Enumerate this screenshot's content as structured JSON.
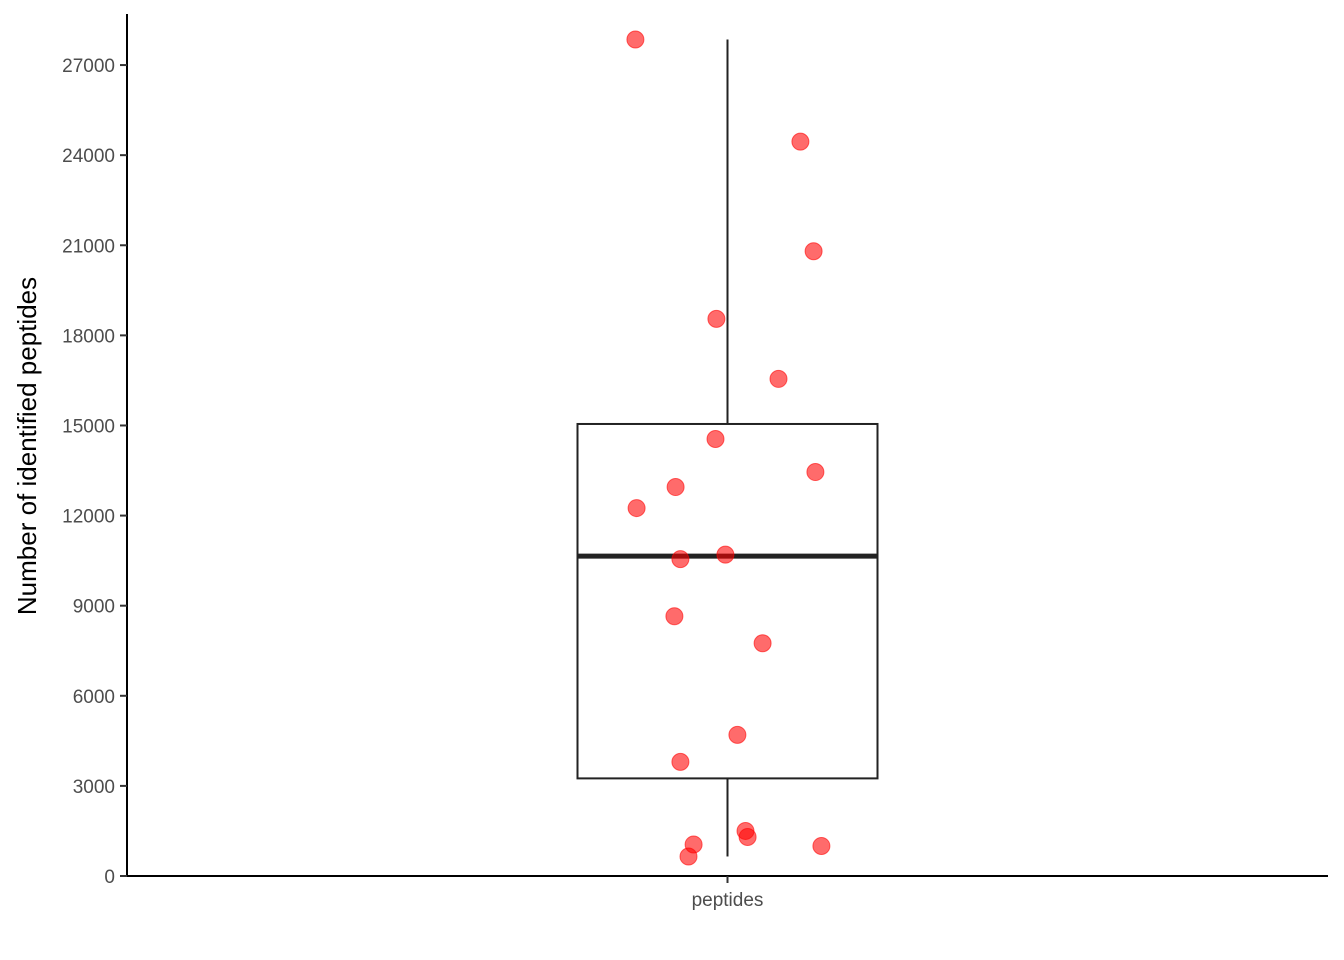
{
  "chart_data": {
    "type": "box",
    "categories": [
      "peptides"
    ],
    "title": "",
    "xlabel": "",
    "ylabel": "Number of identified peptides",
    "ylim": [
      0,
      28700
    ],
    "yticks": [
      0,
      3000,
      6000,
      9000,
      12000,
      15000,
      18000,
      21000,
      24000,
      27000
    ],
    "grid": false,
    "box": {
      "category": "peptides",
      "whisker_low": 650,
      "q1": 3250,
      "median": 10650,
      "q3": 15050,
      "whisker_high": 27850
    },
    "points": {
      "category": "peptides",
      "color": "#ff0000",
      "values": [
        27850,
        24450,
        20800,
        18550,
        16550,
        14550,
        13450,
        12950,
        12250,
        10700,
        10550,
        8650,
        7750,
        4700,
        3800,
        1500,
        1300,
        1050,
        1000,
        650
      ],
      "jitter": [
        -0.307,
        0.243,
        0.287,
        -0.037,
        0.17,
        -0.04,
        0.293,
        -0.173,
        -0.303,
        -0.007,
        -0.157,
        -0.177,
        0.117,
        0.033,
        -0.157,
        0.06,
        0.067,
        -0.113,
        0.313,
        -0.13
      ]
    }
  }
}
